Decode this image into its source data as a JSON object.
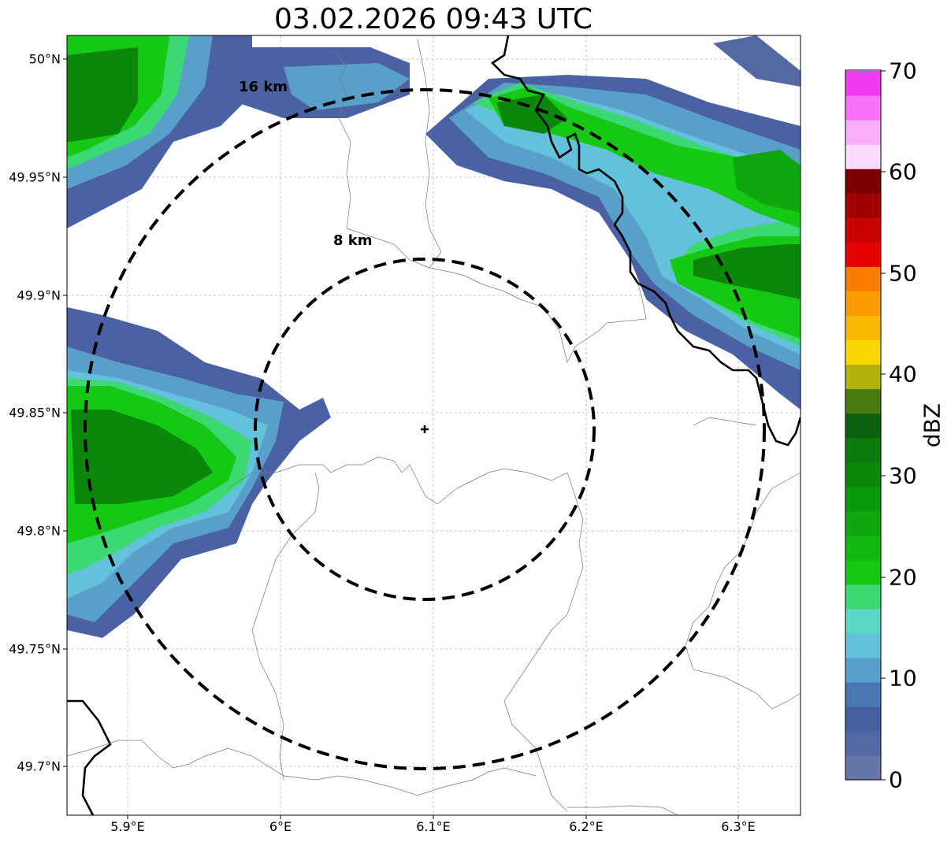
{
  "title": "03.02.2026 09:43 UTC",
  "axes": {
    "y_ticks": [
      "50°N",
      "49.95°N",
      "49.9°N",
      "49.85°N",
      "49.8°N",
      "49.75°N",
      "49.7°N"
    ],
    "x_ticks": [
      "5.9°E",
      "6°E",
      "6.1°E",
      "6.2°E",
      "6.3°E"
    ]
  },
  "rings": [
    {
      "label": "8 km"
    },
    {
      "label": "16 km"
    }
  ],
  "colorbar": {
    "unit": "dBZ",
    "ticks": [
      "0",
      "10",
      "20",
      "30",
      "40",
      "50",
      "60",
      "70"
    ],
    "colors": [
      "#6477a8",
      "#5468a2",
      "#44609f",
      "#4a77b2",
      "#58a0c9",
      "#64c1dc",
      "#5ad8c4",
      "#3cd872",
      "#14c814",
      "#10b810",
      "#0ea80e",
      "#0c980c",
      "#0b880b",
      "#0a7a0a",
      "#0a6210",
      "#4b7a10",
      "#afb20a",
      "#fad700",
      "#fab800",
      "#fa9b00",
      "#fa7d00",
      "#e60000",
      "#c80000",
      "#a00000",
      "#780000",
      "#fadaff",
      "#f8aef8",
      "#f872f8",
      "#f03cf0"
    ]
  },
  "echo_colors": {
    "weak": "#4a62a4",
    "light": "#58a0c9",
    "cyan": "#64c1dc",
    "mint": "#3cd872",
    "green": "#14c814",
    "dark_green": "#0b880b"
  }
}
